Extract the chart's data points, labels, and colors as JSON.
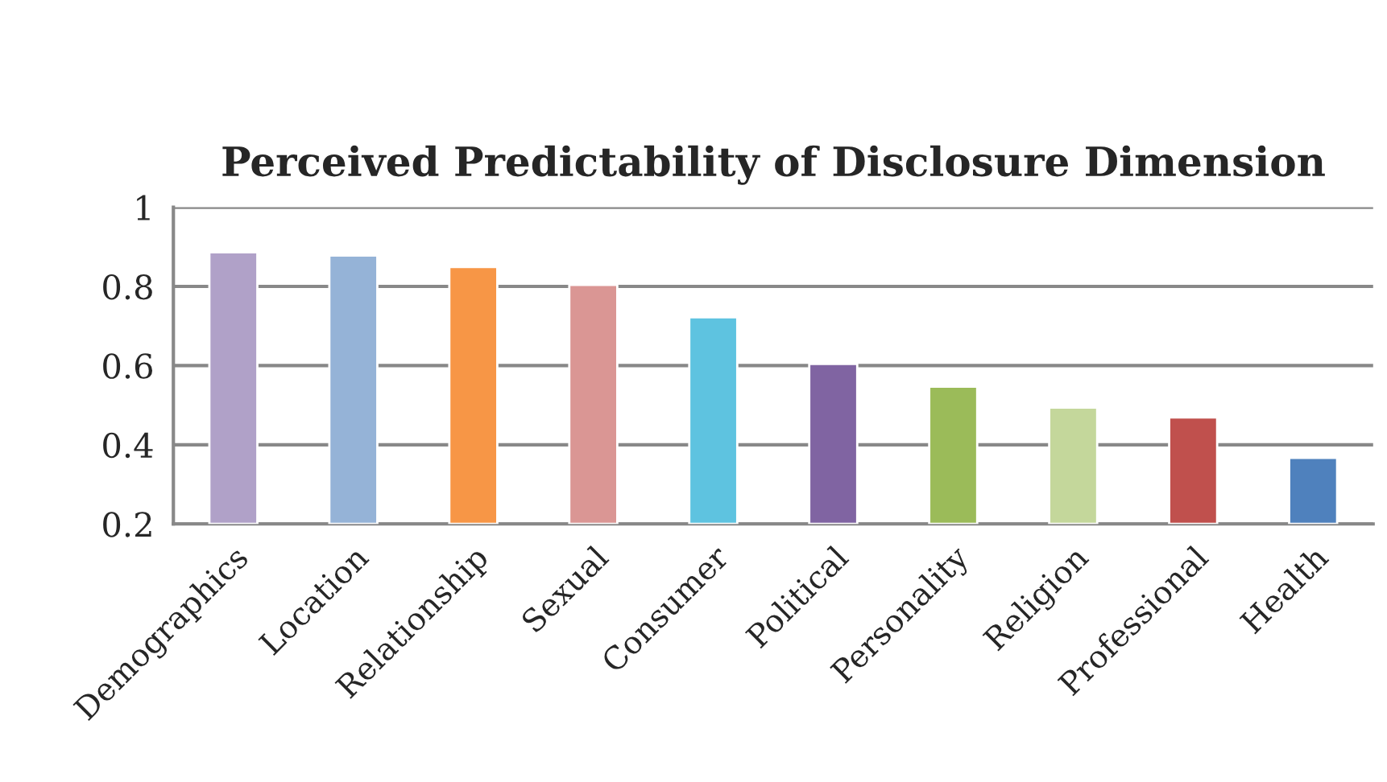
{
  "chart_data": {
    "type": "bar",
    "title": "Perceived Predictability of Disclosure Dimension",
    "categories": [
      "Demographics",
      "Location",
      "Relationship",
      "Sexual",
      "Consumer",
      "Political",
      "Personality",
      "Religion",
      "Professional",
      "Health"
    ],
    "values": [
      0.886,
      0.878,
      0.849,
      0.804,
      0.722,
      0.604,
      0.547,
      0.494,
      0.469,
      0.367
    ],
    "colors": [
      "#b0a1c8",
      "#95b3d7",
      "#f79646",
      "#da9694",
      "#5ec3e0",
      "#8064a2",
      "#9bbb59",
      "#c4d79b",
      "#c0504d",
      "#4f81bd"
    ],
    "ylim": [
      0.2,
      1
    ],
    "yticks": [
      0.2,
      0.4,
      0.6,
      0.8,
      1
    ],
    "grid": "y"
  }
}
